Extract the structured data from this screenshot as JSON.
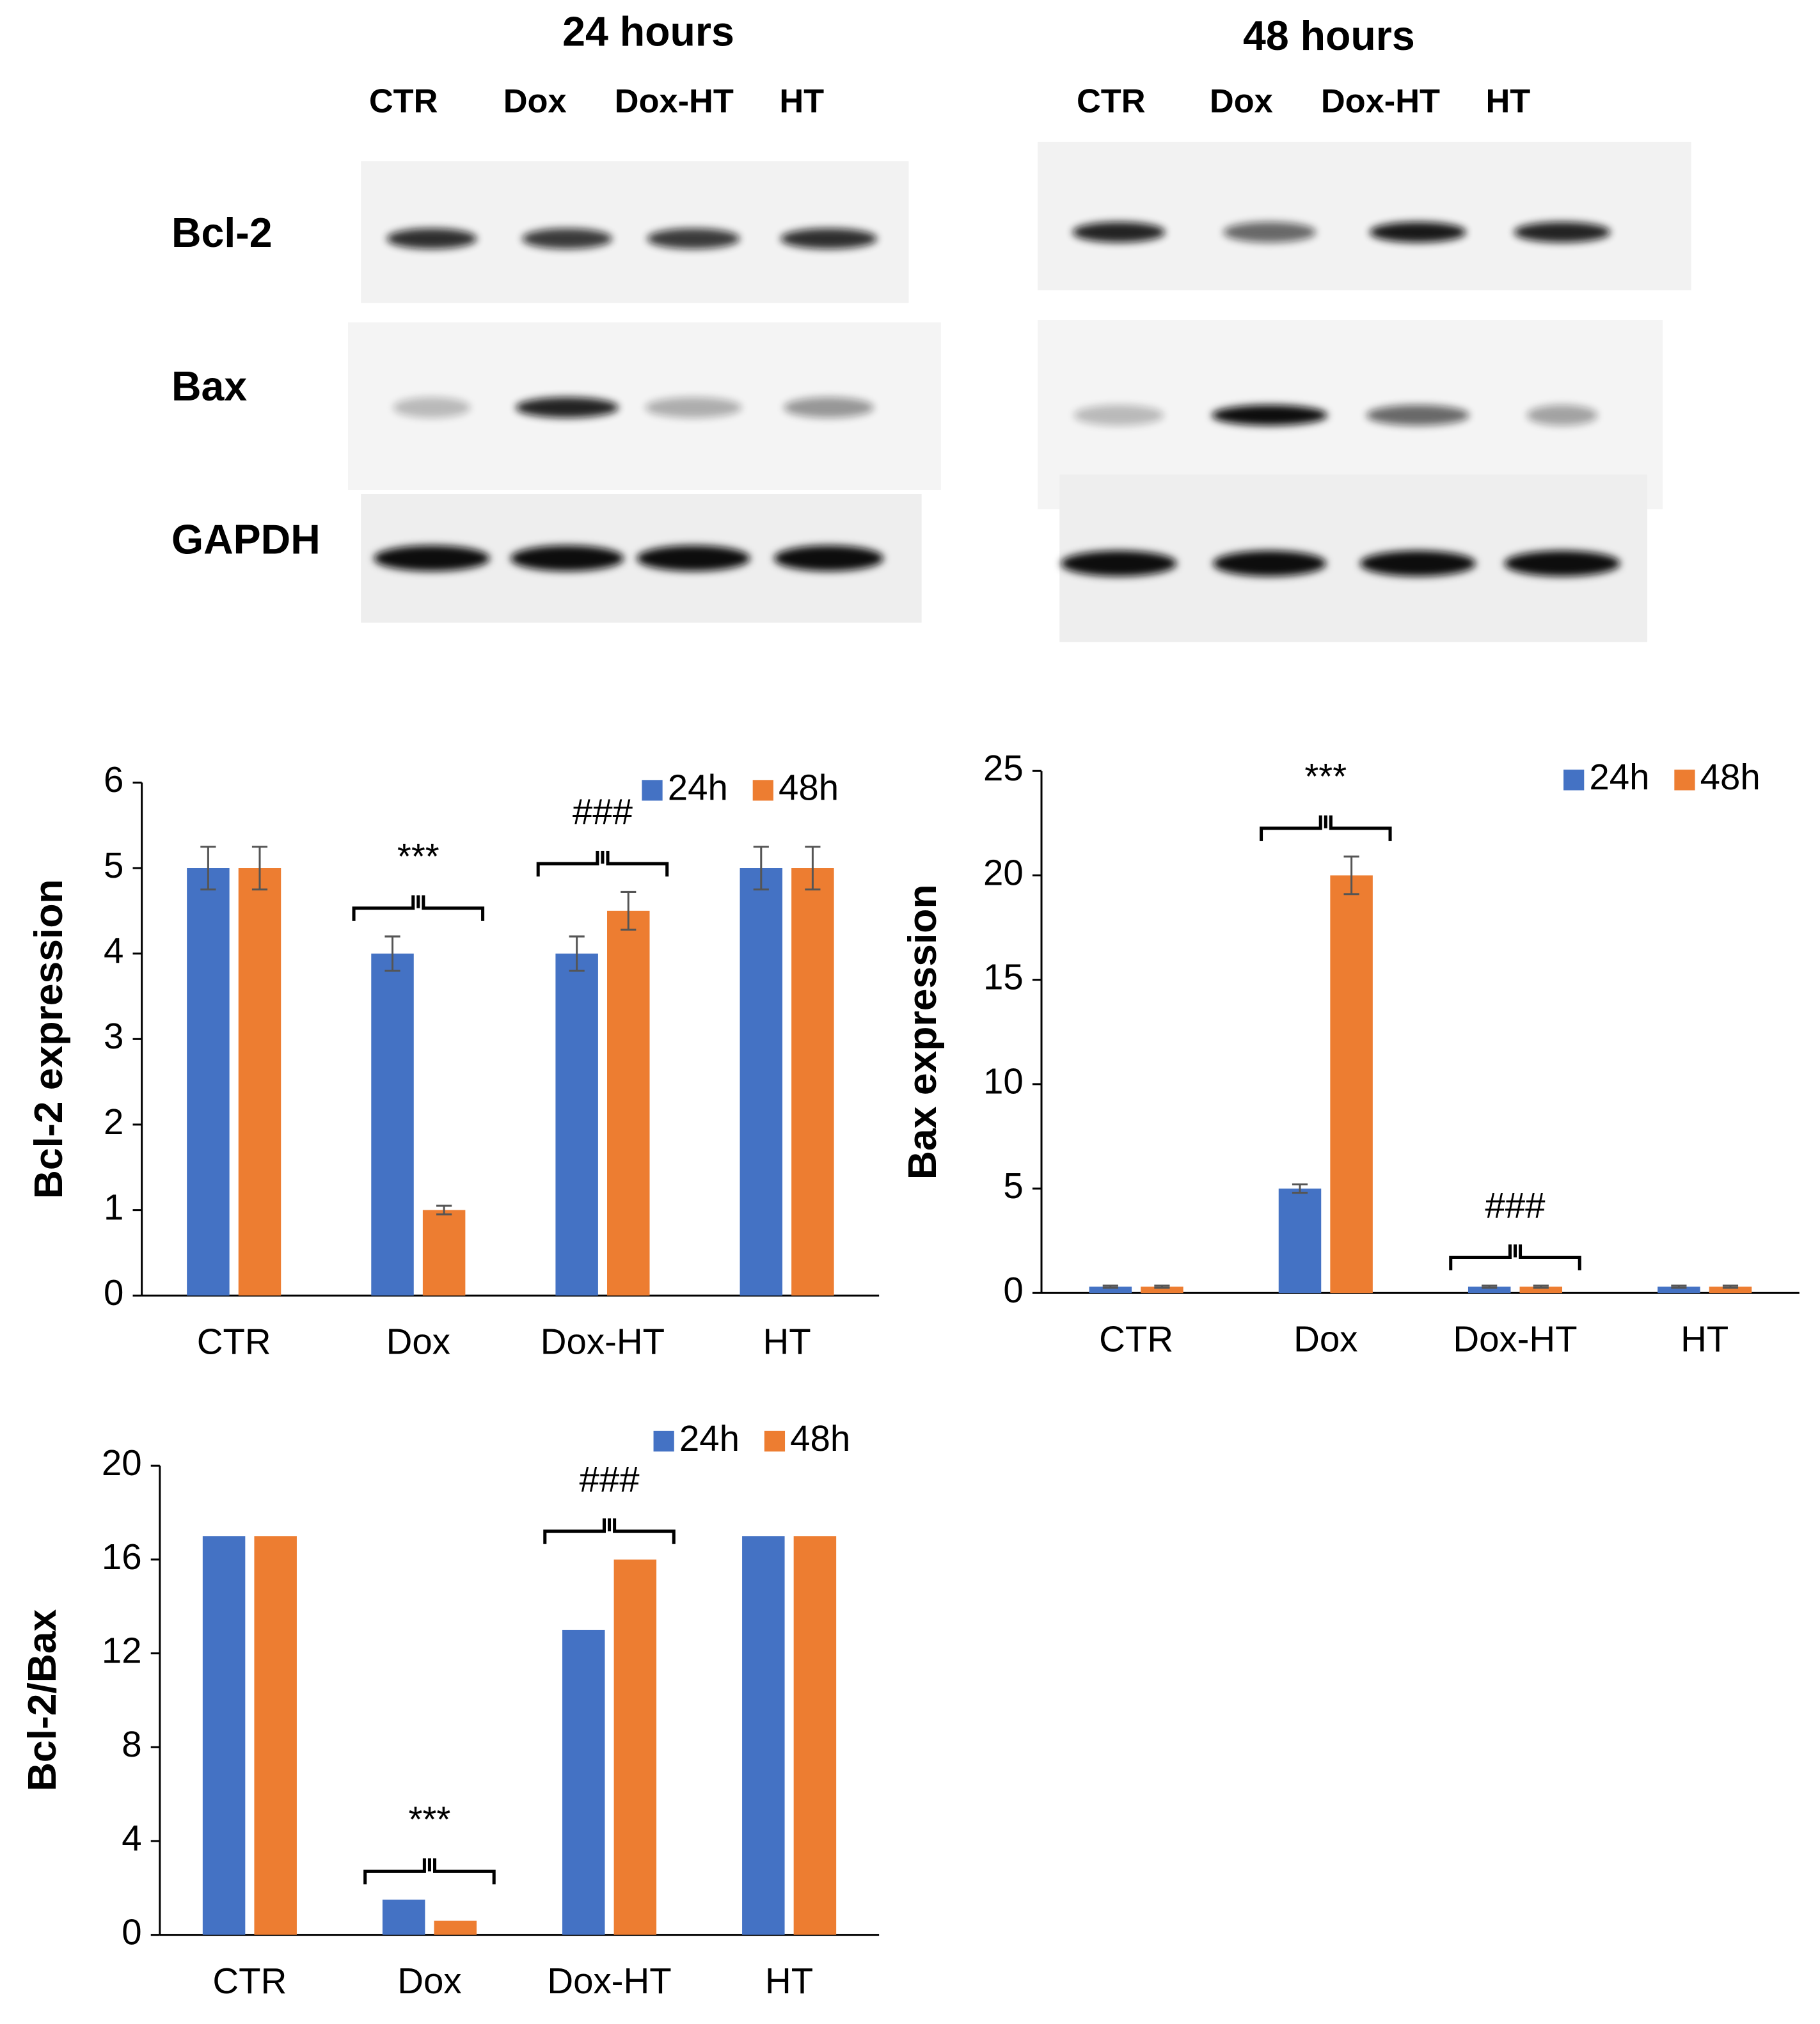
{
  "blot_rows": [
    "Bcl-2",
    "Bax",
    "GAPDH"
  ],
  "blots": [
    {
      "title": "24 hours",
      "lanes": [
        "CTR",
        "Dox",
        "Dox-HT",
        "HT"
      ]
    },
    {
      "title": "48 hours",
      "lanes": [
        "CTR",
        "Dox",
        "Dox-HT",
        "HT"
      ]
    }
  ],
  "chart_data": [
    {
      "type": "bar",
      "y_label": "Bcl-2 expression",
      "categories": [
        "CTR",
        "Dox",
        "Dox-HT",
        "HT"
      ],
      "series": [
        {
          "name": "24h",
          "color": "#4472c4",
          "values": [
            5,
            4,
            4,
            5
          ],
          "errors": [
            0.25,
            0.2,
            0.2,
            0.25
          ]
        },
        {
          "name": "48h",
          "color": "#ed7d31",
          "values": [
            5,
            1,
            4.5,
            5
          ],
          "errors": [
            0.25,
            0.05,
            0.22,
            0.25
          ]
        }
      ],
      "ylim": [
        0,
        6
      ],
      "yticks": [
        0,
        1,
        2,
        3,
        4,
        5,
        6
      ],
      "legend": "upper right",
      "annotations": [
        {
          "text": "***",
          "category": 1
        },
        {
          "text": "###",
          "category": 2
        }
      ]
    },
    {
      "type": "bar",
      "y_label": "Bax expression",
      "categories": [
        "CTR",
        "Dox",
        "Dox-HT",
        "HT"
      ],
      "series": [
        {
          "name": "24h",
          "color": "#4472c4",
          "values": [
            0.3,
            5,
            0.3,
            0.3
          ],
          "errors": [
            0.05,
            0.2,
            0.05,
            0.05
          ]
        },
        {
          "name": "48h",
          "color": "#ed7d31",
          "values": [
            0.3,
            20,
            0.3,
            0.3
          ],
          "errors": [
            0.05,
            0.9,
            0.05,
            0.05
          ]
        }
      ],
      "ylim": [
        0,
        25
      ],
      "yticks": [
        0,
        5,
        10,
        15,
        20,
        25
      ],
      "legend": "upper right",
      "annotations": [
        {
          "text": "***",
          "category": 1
        },
        {
          "text": "###",
          "category": 2
        }
      ]
    },
    {
      "type": "bar",
      "y_label": "Bcl-2/Bax",
      "categories": [
        "CTR",
        "Dox",
        "Dox-HT",
        "HT"
      ],
      "series": [
        {
          "name": "24h",
          "color": "#4472c4",
          "values": [
            17,
            1.5,
            13,
            17
          ]
        },
        {
          "name": "48h",
          "color": "#ed7d31",
          "values": [
            17,
            0.6,
            16,
            17
          ]
        }
      ],
      "ylim": [
        0,
        20
      ],
      "yticks": [
        0,
        4,
        8,
        12,
        16,
        20
      ],
      "legend": "upper right",
      "annotations": [
        {
          "text": "***",
          "category": 1
        },
        {
          "text": "###",
          "category": 2
        }
      ]
    }
  ]
}
